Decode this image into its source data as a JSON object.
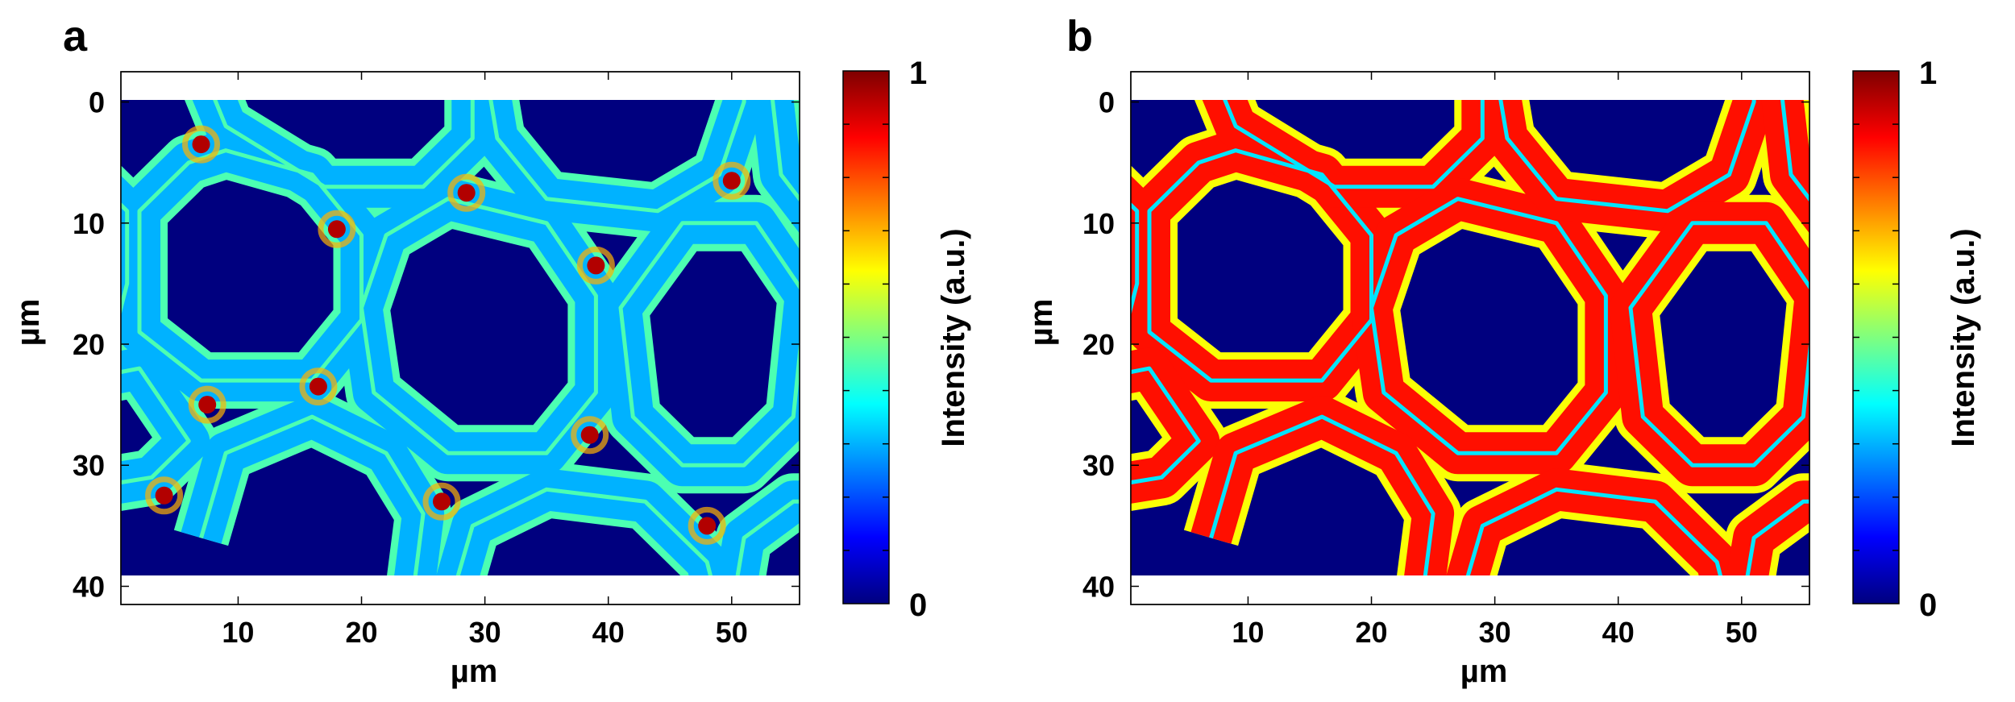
{
  "colormap": [
    "#00007f",
    "#0000ff",
    "#007fff",
    "#00ffff",
    "#7fff7f",
    "#ffff00",
    "#ff7f00",
    "#ff0000",
    "#7f0000"
  ],
  "chart_data": [
    {
      "panel_label": "a",
      "type": "heatmap",
      "xlabel": "µm",
      "ylabel": "µm",
      "xlim": [
        0.5,
        55.5
      ],
      "ylim": [
        -2.5,
        41.5
      ],
      "image_extent_y": [
        0,
        39.5
      ],
      "xticks": [
        "10",
        "20",
        "30",
        "40",
        "50"
      ],
      "yticks": [
        "0",
        "10",
        "20",
        "30",
        "40"
      ],
      "colorbar": {
        "label": "Intensity (a.u.)",
        "min_label": "0",
        "max_label": "1",
        "range": [
          0,
          1
        ]
      },
      "cell_wall_intensity": 0.3,
      "cell_wall_inner_edge_intensity": 0.45,
      "hotspot_intensity": 0.95,
      "background_intensity": 0.0
    },
    {
      "panel_label": "b",
      "type": "heatmap",
      "xlabel": "µm",
      "ylabel": "µm",
      "xlim": [
        0.5,
        55.5
      ],
      "ylim": [
        -2.5,
        41.5
      ],
      "image_extent_y": [
        0,
        39.5
      ],
      "xticks": [
        "10",
        "20",
        "30",
        "40",
        "50"
      ],
      "yticks": [
        "0",
        "10",
        "20",
        "30",
        "40"
      ],
      "colorbar": {
        "label": "Intensity (a.u.)",
        "min_label": "0",
        "max_label": "1",
        "range": [
          0,
          1
        ]
      },
      "cell_wall_intensity": 0.86,
      "cell_wall_inner_edge_intensity": 0.62,
      "junction_intensity": 0.35,
      "background_intensity": 0.0
    }
  ]
}
